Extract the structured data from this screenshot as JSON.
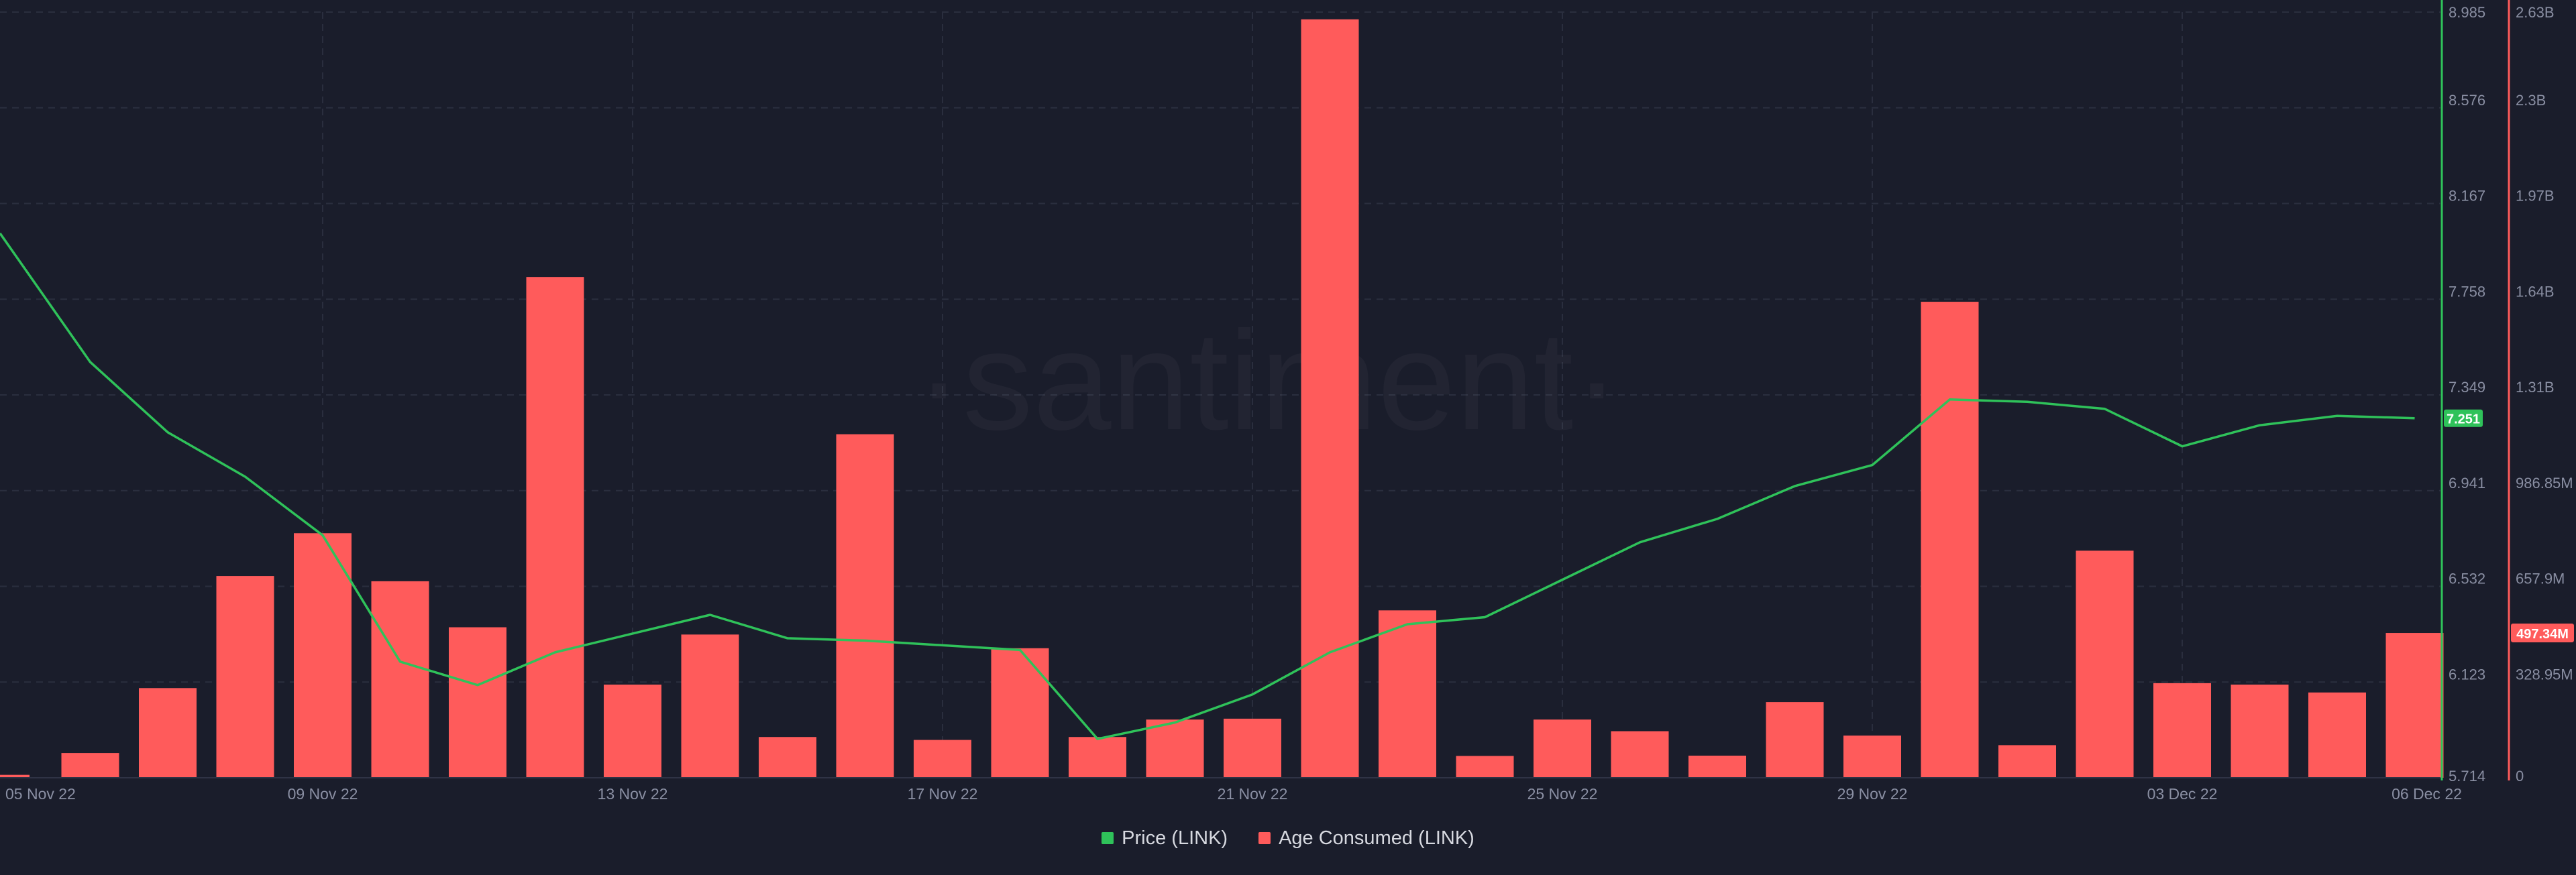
{
  "watermark": "·santiment·",
  "chart_data": {
    "type": "bar",
    "title": "",
    "xlabel": "",
    "x": [
      "05 Nov 22",
      "06 Nov 22",
      "07 Nov 22",
      "08 Nov 22",
      "09 Nov 22",
      "10 Nov 22",
      "11 Nov 22",
      "12 Nov 22",
      "13 Nov 22",
      "14 Nov 22",
      "15 Nov 22",
      "16 Nov 22",
      "17 Nov 22",
      "18 Nov 22",
      "19 Nov 22",
      "20 Nov 22",
      "21 Nov 22",
      "22 Nov 22",
      "23 Nov 22",
      "24 Nov 22",
      "25 Nov 22",
      "26 Nov 22",
      "27 Nov 22",
      "28 Nov 22",
      "29 Nov 22",
      "30 Nov 22",
      "01 Dec 22",
      "02 Dec 22",
      "03 Dec 22",
      "04 Dec 22",
      "05 Dec 22",
      "06 Dec 22"
    ],
    "x_tick_labels": [
      "05 Nov 22",
      "09 Nov 22",
      "13 Nov 22",
      "17 Nov 22",
      "21 Nov 22",
      "25 Nov 22",
      "29 Nov 22",
      "03 Dec 22",
      "06 Dec 22"
    ],
    "series": [
      {
        "name": "Price (LINK)",
        "type": "line",
        "axis": "right-inner",
        "color": "#2fc25a",
        "values": [
          8.04,
          7.49,
          7.19,
          7.0,
          6.75,
          6.21,
          6.11,
          6.25,
          6.33,
          6.41,
          6.31,
          6.3,
          6.28,
          6.26,
          5.88,
          5.95,
          6.07,
          6.25,
          6.37,
          6.4,
          6.56,
          6.72,
          6.82,
          6.96,
          7.05,
          7.33,
          7.32,
          7.29,
          7.13,
          7.22,
          7.26,
          7.25
        ],
        "last_value_label": "7.251"
      },
      {
        "name": "Age Consumed (LINK)",
        "type": "bar",
        "axis": "right-outer",
        "color": "#ff5b5b",
        "values": [
          10000000,
          85000000,
          308000000,
          693000000,
          840000000,
          675000000,
          517000000,
          1720000000,
          320000000,
          492000000,
          140000000,
          1180000000,
          130000000,
          445000000,
          140000000,
          200000000,
          203000000,
          2605000000,
          575000000,
          75000000,
          200000000,
          160000000,
          76000000,
          260000000,
          145000000,
          1635000000,
          112000000,
          780000000,
          325000000,
          320000000,
          293000000,
          497340000
        ],
        "last_value_label": "497.34M"
      }
    ],
    "y_price": {
      "range": [
        5.714,
        8.985
      ],
      "tick_labels": [
        "8.985",
        "8.576",
        "8.167",
        "7.758",
        "7.349",
        "6.941",
        "6.532",
        "6.123",
        "5.714"
      ]
    },
    "y_age": {
      "range": [
        0,
        2630000000
      ],
      "tick_labels": [
        "2.63B",
        "2.3B",
        "1.97B",
        "1.64B",
        "1.31B",
        "986.85M",
        "657.9M",
        "328.95M",
        "0"
      ]
    },
    "grid": true,
    "legend": "bottom-center"
  }
}
